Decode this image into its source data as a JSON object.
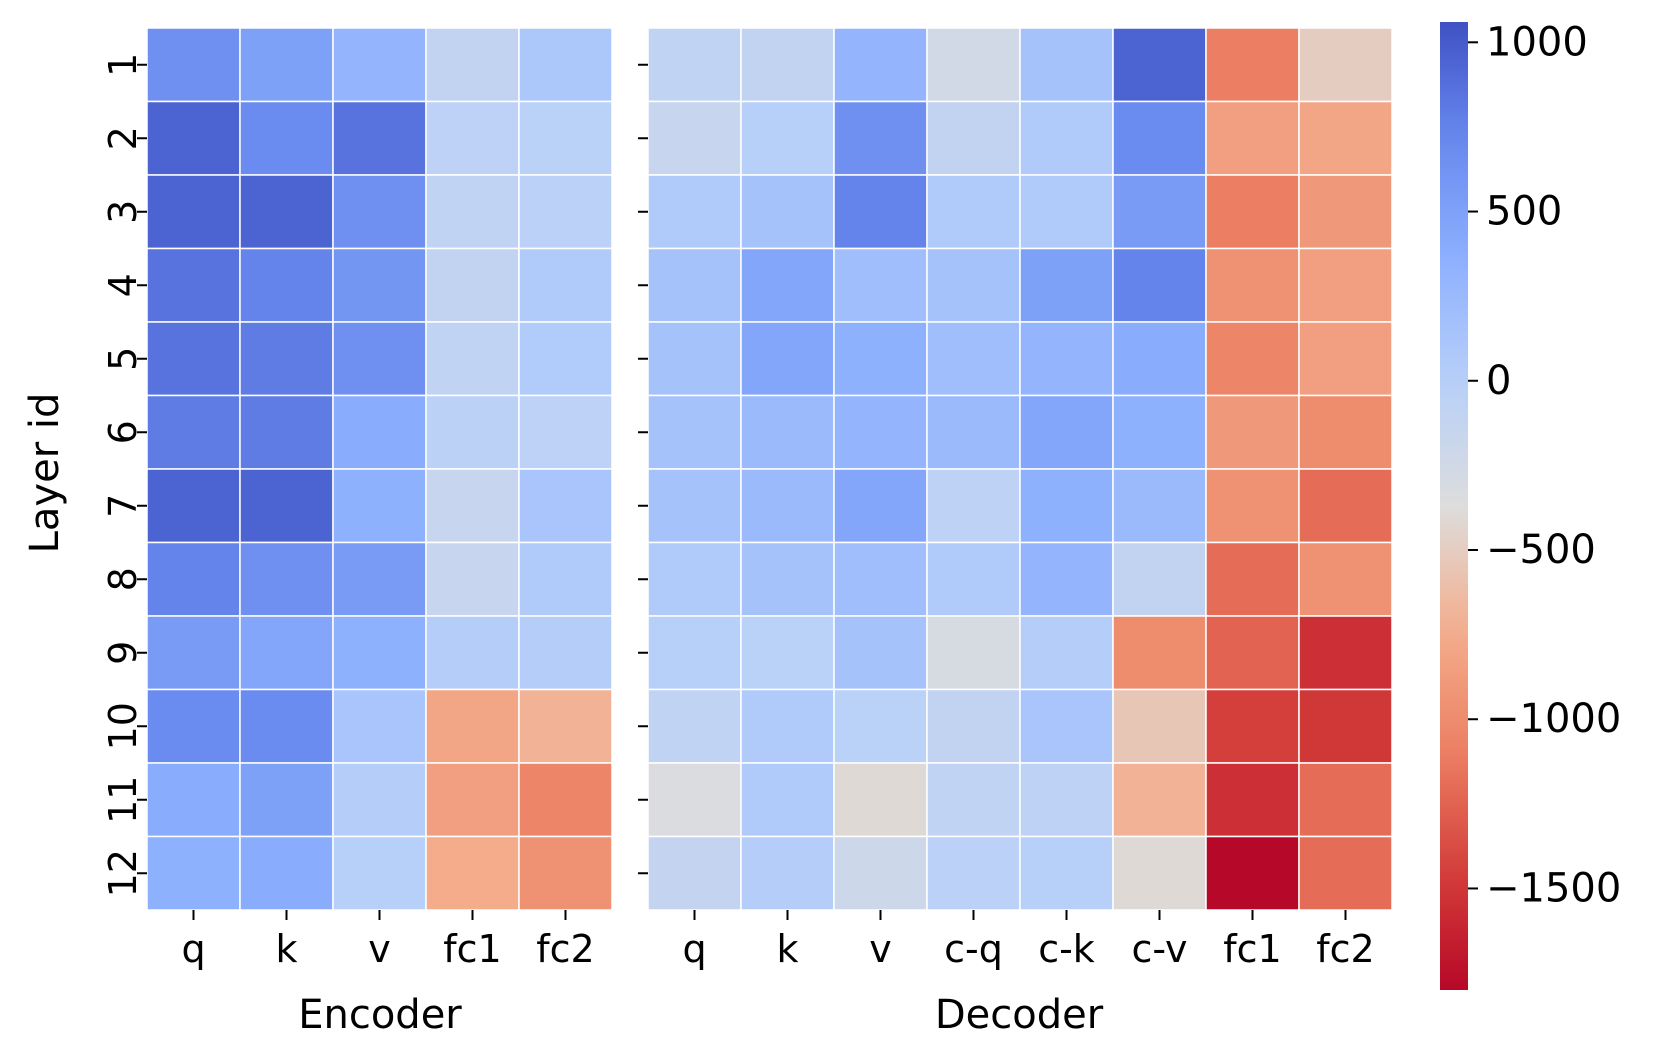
{
  "chart_data": {
    "type": "heatmap",
    "ylabel": "Layer id",
    "rows": [
      "1",
      "2",
      "3",
      "4",
      "5",
      "6",
      "7",
      "8",
      "9",
      "10",
      "11",
      "12"
    ],
    "colorbar": {
      "min": -1800,
      "max": 1060,
      "ticks": [
        1000,
        500,
        0,
        -500,
        -1000,
        -1500
      ],
      "tick_labels": [
        "1000",
        "500",
        "0",
        "−500",
        "−1000",
        "−1500"
      ],
      "colormap": "coolwarm"
    },
    "panels": [
      {
        "name": "encoder",
        "xlabel": "Encoder",
        "columns": [
          "q",
          "k",
          "v",
          "fc1",
          "fc2"
        ],
        "values": [
          [
            650,
            500,
            300,
            -100,
            100
          ],
          [
            950,
            700,
            850,
            -50,
            -20
          ],
          [
            950,
            950,
            650,
            -80,
            -30
          ],
          [
            850,
            750,
            600,
            -100,
            60
          ],
          [
            850,
            800,
            650,
            -80,
            50
          ],
          [
            800,
            800,
            400,
            -40,
            -50
          ],
          [
            950,
            950,
            350,
            -150,
            120
          ],
          [
            750,
            650,
            550,
            -150,
            60
          ],
          [
            550,
            450,
            350,
            20,
            20
          ],
          [
            700,
            700,
            120,
            -800,
            -700
          ],
          [
            400,
            500,
            20,
            -850,
            -1050
          ],
          [
            350,
            400,
            0,
            -750,
            -950
          ]
        ]
      },
      {
        "name": "decoder",
        "xlabel": "Decoder",
        "columns": [
          "q",
          "k",
          "v",
          "c-q",
          "c-k",
          "c-v",
          "fc1",
          "fc2"
        ],
        "values": [
          [
            -80,
            -100,
            300,
            -250,
            150,
            950,
            -1100,
            -500
          ],
          [
            -150,
            0,
            650,
            -100,
            60,
            700,
            -850,
            -800
          ],
          [
            60,
            150,
            750,
            60,
            60,
            550,
            -1100,
            -900
          ],
          [
            150,
            450,
            200,
            150,
            500,
            750,
            -950,
            -850
          ],
          [
            150,
            450,
            350,
            200,
            300,
            400,
            -1050,
            -850
          ],
          [
            150,
            250,
            300,
            250,
            450,
            350,
            -900,
            -1000
          ],
          [
            150,
            250,
            450,
            -60,
            350,
            250,
            -950,
            -1200
          ],
          [
            60,
            150,
            200,
            60,
            300,
            -100,
            -1200,
            -950
          ],
          [
            0,
            -20,
            150,
            -300,
            30,
            -1000,
            -1250,
            -1550
          ],
          [
            -80,
            60,
            -20,
            -100,
            120,
            -550,
            -1450,
            -1500
          ],
          [
            -350,
            60,
            -400,
            -80,
            -60,
            -700,
            -1550,
            -1200
          ],
          [
            -120,
            20,
            -200,
            -30,
            0,
            -400,
            -1800,
            -1200
          ]
        ]
      }
    ]
  }
}
